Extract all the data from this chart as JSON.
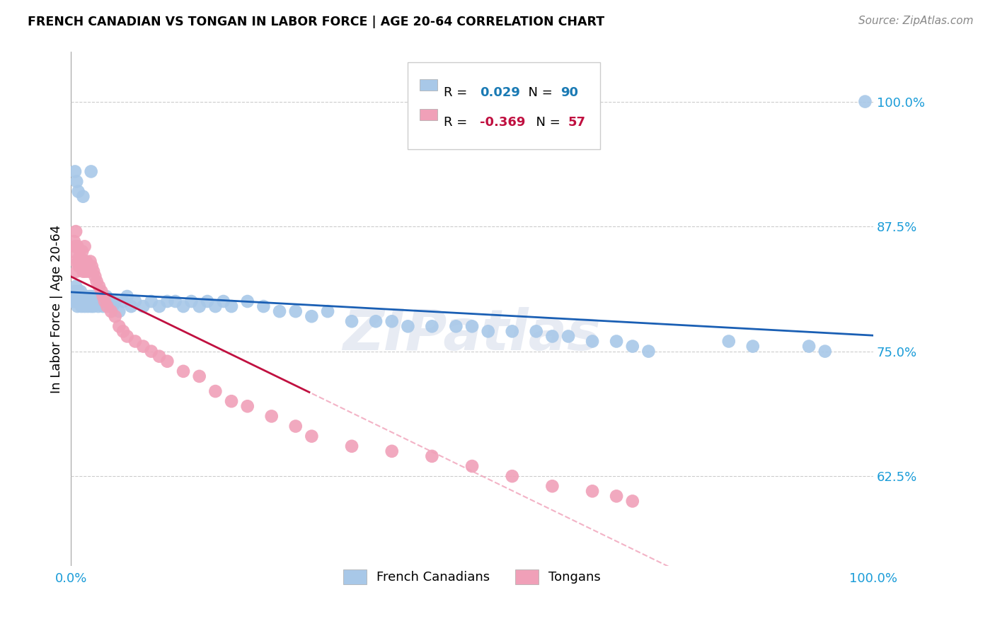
{
  "title": "FRENCH CANADIAN VS TONGAN IN LABOR FORCE | AGE 20-64 CORRELATION CHART",
  "source": "Source: ZipAtlas.com",
  "ylabel": "In Labor Force | Age 20-64",
  "xlim": [
    0.0,
    1.0
  ],
  "ylim": [
    0.535,
    1.05
  ],
  "yticks": [
    0.625,
    0.75,
    0.875,
    1.0
  ],
  "ytick_labels": [
    "62.5%",
    "75.0%",
    "87.5%",
    "100.0%"
  ],
  "french_color": "#a8c8e8",
  "tongan_color": "#f0a0b8",
  "trend_french_color": "#1a5fb4",
  "trend_tongan_solid_color": "#c01040",
  "trend_tongan_dashed_color": "#f0a0b8",
  "R_french": 0.029,
  "N_french": 90,
  "R_tongan": -0.369,
  "N_tongan": 57,
  "legend_french_label": "French Canadians",
  "legend_tongan_label": "Tongans",
  "watermark": "ZIPatlas",
  "legend_R_color_french": "#1a7ab4",
  "legend_R_color_tongan": "#c01040",
  "legend_N_color_french": "#1a7ab4",
  "legend_N_color_tongan": "#c01040"
}
